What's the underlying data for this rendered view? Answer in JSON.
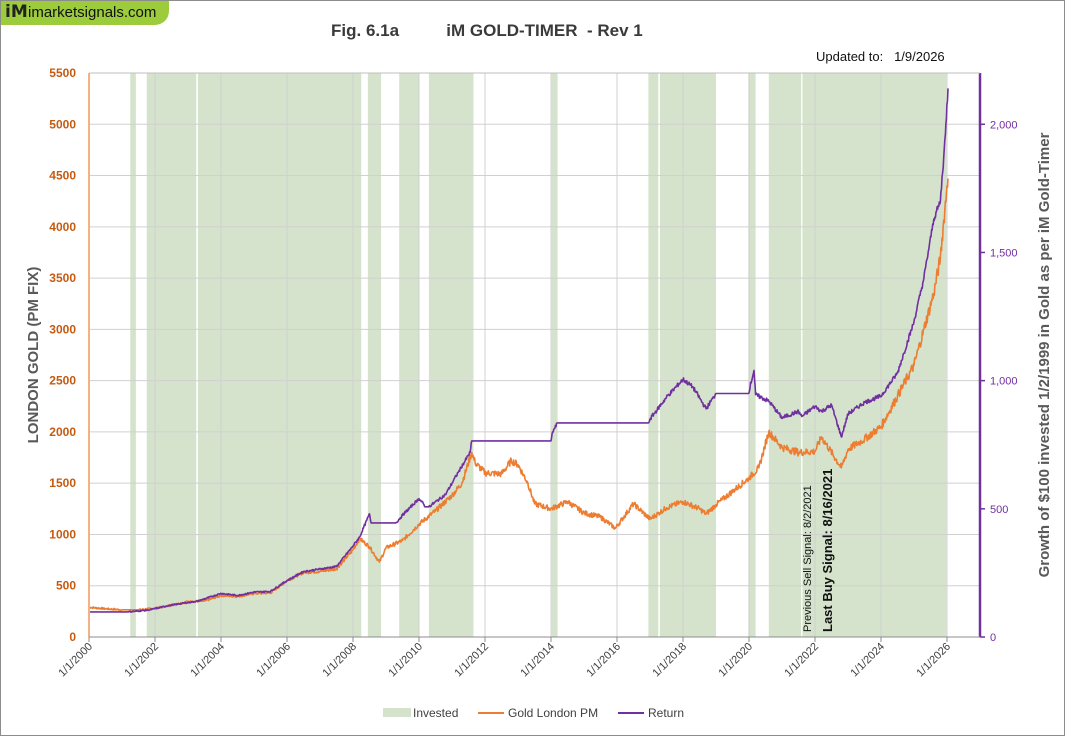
{
  "logo": {
    "mark": "iM",
    "text": "imarketsignals.com"
  },
  "header": {
    "figure": "Fig. 6.1a",
    "title": "iM GOLD-TIMER  - Rev 1",
    "updated_label": "Updated to:",
    "updated_date": "1/9/2026"
  },
  "annotations": {
    "previous_sell": "Previous Sell Signal:  8/2/2021",
    "last_buy": "Last Buy Signal:  8/16/2021"
  },
  "colors": {
    "invested": "#d5e3cc",
    "gold": "#ed7d31",
    "return": "#7030a0",
    "left_axis": "#c55a11",
    "right_axis": "#7030a0",
    "grid": "#d0d0d0"
  },
  "chart_data": {
    "type": "line",
    "title": "iM GOLD-TIMER - Rev 1",
    "xlabel": "",
    "ylabel_left": "LONDON GOLD (PM FIX)",
    "ylabel_right": "Growth of $100 invested 1/2/1999 in Gold as per iM Gold-Timer",
    "xlim": [
      2000.0,
      2027.0
    ],
    "ylim_left": [
      0,
      5500
    ],
    "ylim_right": [
      0,
      2200
    ],
    "y_ticks_left": [
      "0",
      "500",
      "1000",
      "1500",
      "2000",
      "2500",
      "3000",
      "3500",
      "4000",
      "4500",
      "5000",
      "5500"
    ],
    "y_ticks_right": [
      "0",
      "500",
      "1,000",
      "1,500",
      "2,000"
    ],
    "x_ticks": [
      "1/1/2000",
      "1/1/2002",
      "1/1/2004",
      "1/1/2006",
      "1/1/2008",
      "1/1/2010",
      "1/1/2012",
      "1/1/2014",
      "1/1/2016",
      "1/1/2018",
      "1/1/2020",
      "1/1/2022",
      "1/1/2024",
      "1/1/2026"
    ],
    "legend": [
      "Invested",
      "Gold London PM",
      "Return"
    ],
    "legend_position": "bottom",
    "invested_periods": [
      [
        2001.25,
        2001.42
      ],
      [
        2001.75,
        2003.25
      ],
      [
        2003.3,
        2008.25
      ],
      [
        2008.45,
        2008.85
      ],
      [
        2009.4,
        2010.0
      ],
      [
        2010.3,
        2011.65
      ],
      [
        2014.02,
        2014.2
      ],
      [
        2016.95,
        2017.25
      ],
      [
        2017.3,
        2019.0
      ],
      [
        2019.98,
        2020.2
      ],
      [
        2020.6,
        2021.58
      ],
      [
        2021.62,
        2025.98
      ]
    ],
    "series": [
      {
        "name": "Gold London PM",
        "axis": "left",
        "x": [
          2000.0,
          2000.5,
          2001.0,
          2001.5,
          2002.0,
          2002.5,
          2003.0,
          2003.5,
          2004.0,
          2004.5,
          2005.0,
          2005.5,
          2006.0,
          2006.5,
          2007.0,
          2007.5,
          2008.0,
          2008.2,
          2008.5,
          2008.8,
          2009.0,
          2009.5,
          2010.0,
          2010.5,
          2011.0,
          2011.3,
          2011.6,
          2011.7,
          2012.0,
          2012.5,
          2012.8,
          2013.0,
          2013.3,
          2013.5,
          2014.0,
          2014.5,
          2015.0,
          2015.5,
          2015.95,
          2016.5,
          2017.0,
          2017.5,
          2018.0,
          2018.5,
          2018.7,
          2019.0,
          2019.5,
          2020.0,
          2020.3,
          2020.6,
          2021.0,
          2021.5,
          2022.0,
          2022.2,
          2022.8,
          2023.0,
          2023.5,
          2024.0,
          2024.5,
          2025.0,
          2025.3,
          2025.6,
          2025.8,
          2026.0,
          2026.03
        ],
        "values": [
          290,
          275,
          265,
          265,
          280,
          310,
          345,
          350,
          405,
          395,
          425,
          430,
          550,
          630,
          640,
          665,
          850,
          960,
          880,
          730,
          870,
          940,
          1100,
          1230,
          1380,
          1500,
          1800,
          1700,
          1600,
          1590,
          1720,
          1680,
          1500,
          1300,
          1250,
          1320,
          1210,
          1170,
          1060,
          1300,
          1150,
          1260,
          1320,
          1250,
          1200,
          1290,
          1420,
          1550,
          1650,
          2000,
          1850,
          1800,
          1810,
          1950,
          1650,
          1830,
          1930,
          2050,
          2350,
          2650,
          3000,
          3350,
          3700,
          4400,
          4470
        ]
      },
      {
        "name": "Return",
        "axis": "right",
        "x": [
          2000.0,
          2000.03,
          2001.2,
          2001.8,
          2002.5,
          2003.3,
          2004.0,
          2004.5,
          2005.0,
          2005.5,
          2006.0,
          2006.5,
          2007.0,
          2007.5,
          2008.0,
          2008.2,
          2008.5,
          2008.55,
          2009.3,
          2009.5,
          2010.0,
          2010.2,
          2010.3,
          2010.8,
          2011.2,
          2011.55,
          2011.6,
          2014.0,
          2014.05,
          2014.2,
          2016.95,
          2017.0,
          2017.5,
          2018.0,
          2018.3,
          2018.7,
          2019.0,
          2019.98,
          2020.15,
          2020.2,
          2020.6,
          2021.0,
          2021.5,
          2021.6,
          2022.0,
          2022.2,
          2022.5,
          2022.8,
          2023.0,
          2023.5,
          2024.0,
          2024.5,
          2025.0,
          2025.3,
          2025.6,
          2025.8,
          2025.95,
          2026.03
        ],
        "values": [
          100,
          98,
          98,
          105,
          125,
          140,
          170,
          162,
          175,
          178,
          220,
          255,
          265,
          275,
          355,
          390,
          480,
          445,
          445,
          475,
          540,
          508,
          508,
          555,
          645,
          720,
          765,
          765,
          800,
          835,
          835,
          850,
          935,
          1005,
          975,
          890,
          950,
          950,
          1040,
          945,
          920,
          855,
          880,
          860,
          900,
          880,
          905,
          780,
          870,
          915,
          940,
          1030,
          1230,
          1400,
          1630,
          1700,
          1960,
          2140
        ]
      }
    ]
  }
}
